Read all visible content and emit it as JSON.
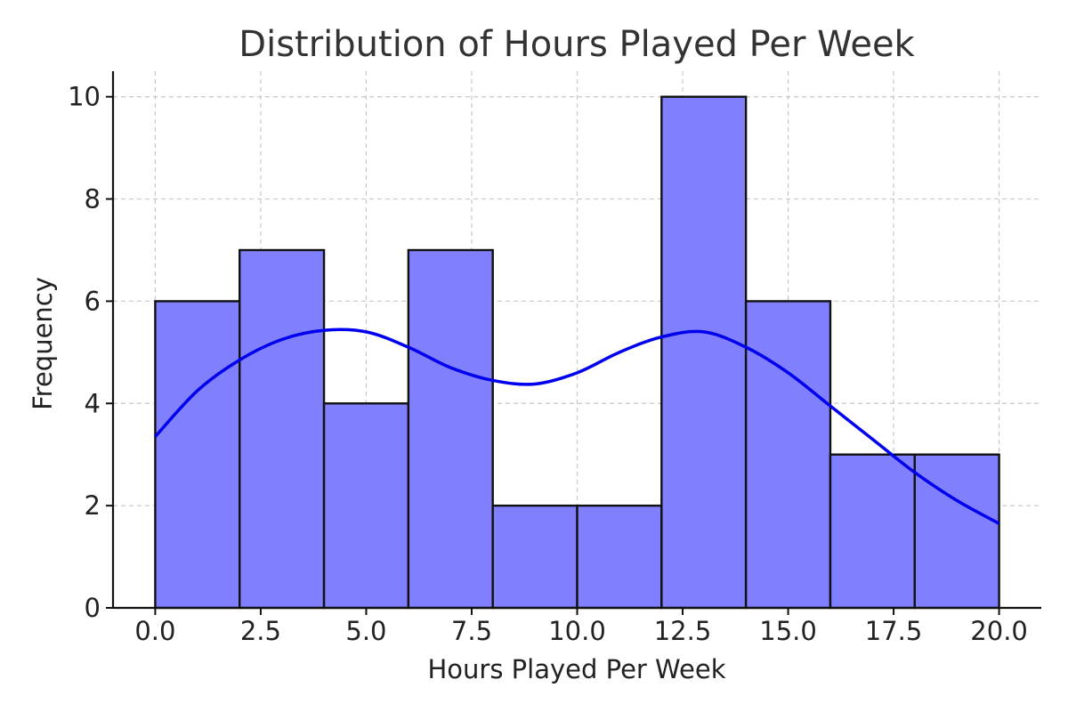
{
  "chart_data": {
    "type": "bar",
    "title": "Distribution of Hours Played Per Week",
    "xlabel": "Hours Played Per Week",
    "ylabel": "Frequency",
    "bin_edges": [
      0,
      2,
      4,
      6,
      8,
      10,
      12,
      14,
      16,
      18,
      20
    ],
    "values": [
      6,
      7,
      4,
      7,
      2,
      2,
      10,
      6,
      3,
      3
    ],
    "xlim": [
      -1,
      21
    ],
    "ylim": [
      0,
      10.5
    ],
    "xticks": [
      0,
      2.5,
      5,
      7.5,
      10,
      12.5,
      15,
      17.5,
      20
    ],
    "xtick_labels": [
      "0.0",
      "2.5",
      "5.0",
      "7.5",
      "10.0",
      "12.5",
      "15.0",
      "17.5",
      "20.0"
    ],
    "yticks": [
      0,
      2,
      4,
      6,
      8,
      10
    ],
    "ytick_labels": [
      "0",
      "2",
      "4",
      "6",
      "8",
      "10"
    ],
    "grid": true,
    "bar_color": "#8080ff",
    "edge_color": "#111111",
    "kde": {
      "color": "#0000ee",
      "x": [
        0,
        1,
        2,
        3,
        4,
        5,
        6,
        7,
        8,
        9,
        10,
        11,
        12,
        13,
        14,
        15,
        16,
        17,
        18,
        19,
        20
      ],
      "y": [
        3.35,
        4.25,
        4.85,
        5.25,
        5.43,
        5.4,
        5.1,
        4.7,
        4.45,
        4.38,
        4.6,
        5.0,
        5.3,
        5.4,
        5.1,
        4.6,
        3.95,
        3.3,
        2.65,
        2.1,
        1.65
      ]
    }
  }
}
